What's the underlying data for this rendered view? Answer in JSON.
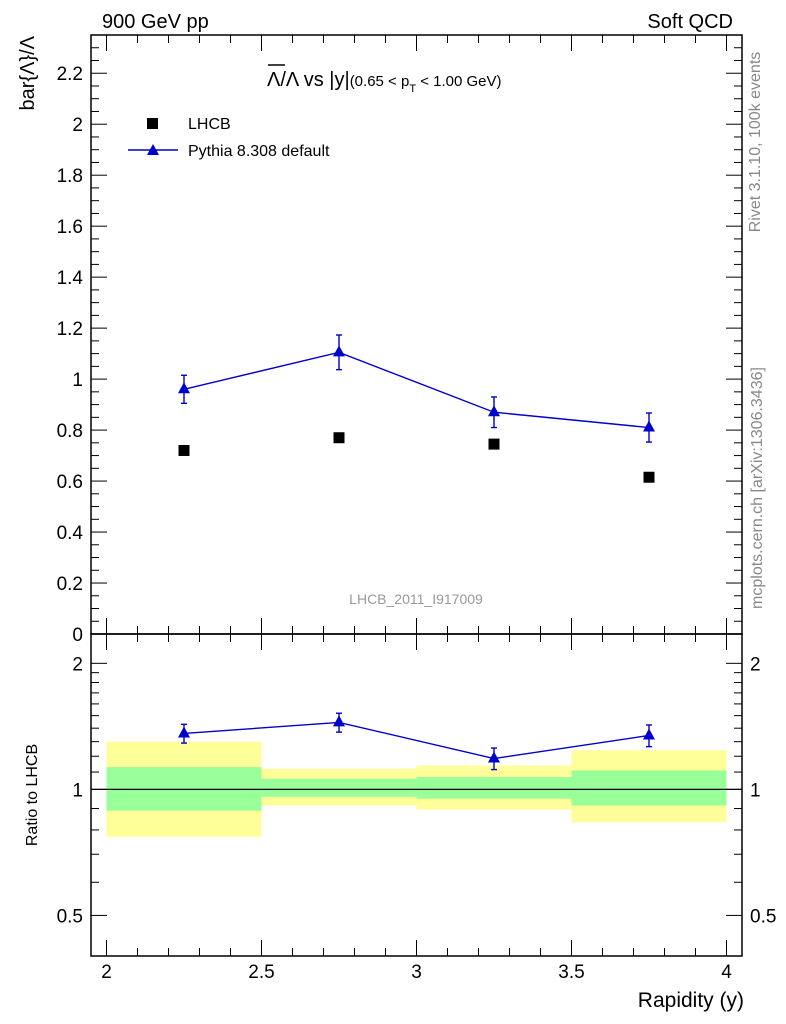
{
  "header": {
    "left": "900 GeV pp",
    "right": "Soft QCD"
  },
  "side_labels": {
    "rivet": "Rivet 3.1.10,  100k events",
    "mcplots": "mcplots.cern.ch [arXiv:1306.3436]"
  },
  "watermark": "LHCB_2011_I917009",
  "chart_data": [
    {
      "type": "scatter",
      "title_parts": {
        "ratio": "Λ/Λ",
        "vs": " vs ",
        "y": "|y|",
        "pt_prefix": "(0.65 < p",
        "pt_sub": "T",
        "pt_suffix": " < 1.00 GeV)"
      },
      "ylabel": "bar{Λ}/Λ",
      "ylim": [
        0,
        2.35
      ],
      "yticks": [
        "0",
        "0.2",
        "0.4",
        "0.6",
        "0.8",
        "1",
        "1.2",
        "1.4",
        "1.6",
        "1.8",
        "2",
        "2.2"
      ],
      "yticks_values": [
        0,
        0.2,
        0.4,
        0.6,
        0.8,
        1.0,
        1.2,
        1.4,
        1.6,
        1.8,
        2.0,
        2.2
      ],
      "legend_position": "top-left",
      "x": [
        2.25,
        2.75,
        3.25,
        3.75
      ],
      "series": [
        {
          "name": "LHCB",
          "marker": "square",
          "color": "#000000",
          "values": [
            0.72,
            0.77,
            0.745,
            0.615
          ]
        },
        {
          "name": "Pythia 8.308 default",
          "marker": "triangle",
          "color": "#0000cc",
          "values": [
            0.96,
            1.105,
            0.87,
            0.81
          ],
          "err": [
            0.055,
            0.068,
            0.06,
            0.057
          ]
        }
      ]
    },
    {
      "type": "line",
      "ylabel": "Ratio to LHCB",
      "xlabel": "Rapidity (y)",
      "ylim": [
        0.4,
        2.35
      ],
      "yticks": [
        "0.5",
        "1",
        "2"
      ],
      "yticks_values": [
        0.5,
        1,
        2
      ],
      "xlim": [
        1.95,
        4.05
      ],
      "xticks": [
        "2",
        "2.5",
        "3",
        "3.5",
        "4"
      ],
      "xticks_values": [
        2,
        2.5,
        3,
        3.5,
        4
      ],
      "bins": [
        [
          2.0,
          2.5
        ],
        [
          2.5,
          3.0
        ],
        [
          3.0,
          3.5
        ],
        [
          3.5,
          4.0
        ]
      ],
      "band_green": [
        [
          0.89,
          1.13
        ],
        [
          0.96,
          1.06
        ],
        [
          0.95,
          1.07
        ],
        [
          0.915,
          1.11
        ]
      ],
      "band_yellow": [
        [
          0.77,
          1.3
        ],
        [
          0.915,
          1.12
        ],
        [
          0.895,
          1.14
        ],
        [
          0.835,
          1.24
        ]
      ],
      "series": [
        {
          "name": "Pythia 8.308 default",
          "color": "#0000cc",
          "x": [
            2.25,
            2.75,
            3.25,
            3.75
          ],
          "values": [
            1.36,
            1.445,
            1.185,
            1.345
          ],
          "err": [
            0.07,
            0.075,
            0.07,
            0.08
          ]
        }
      ]
    }
  ]
}
